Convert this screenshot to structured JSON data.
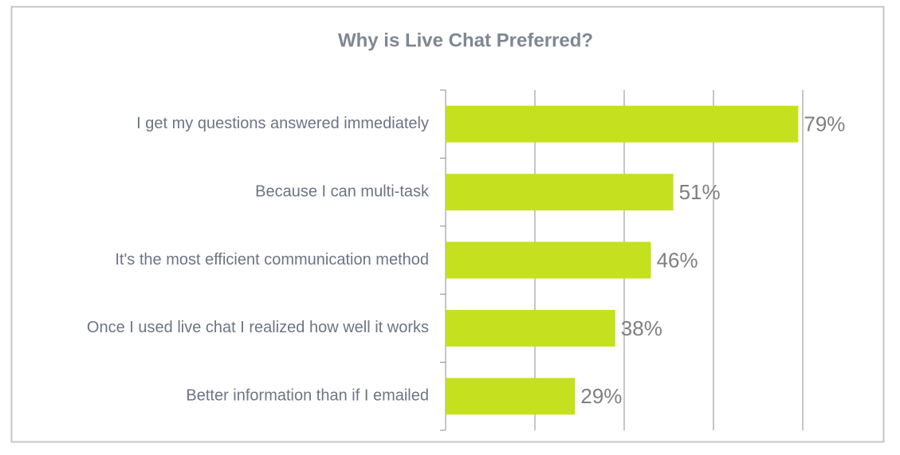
{
  "chart_data": {
    "type": "bar",
    "orientation": "horizontal",
    "title": "Why is Live Chat Preferred?",
    "categories": [
      "I get my questions answered immediately",
      "Because I can multi-task",
      "It's the most efficient communication method",
      "Once I used live chat I realized how well it works",
      "Better information than if I emailed"
    ],
    "values": [
      79,
      51,
      46,
      38,
      29
    ],
    "value_labels": [
      "79%",
      "51%",
      "46%",
      "38%",
      "29%"
    ],
    "color": "#c5e01f",
    "xlim": [
      0,
      80
    ],
    "xticks": [
      0,
      20,
      40,
      60,
      80
    ],
    "grid": true
  }
}
